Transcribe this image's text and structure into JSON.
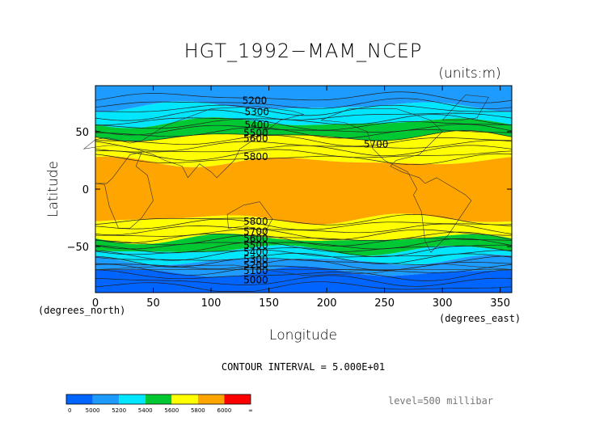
{
  "chart_data": {
    "type": "contour",
    "title": "HGT_1992−MAM_NCEP",
    "units": "(units:m)",
    "xlabel": "Longitude",
    "ylabel": "Latitude",
    "x_units": "(degrees_east)",
    "y_units": "(degrees_north)",
    "xlim": [
      0,
      360
    ],
    "ylim": [
      -90,
      90
    ],
    "x_ticks": [
      0,
      50,
      100,
      150,
      200,
      250,
      300,
      350
    ],
    "y_ticks": [
      -50,
      0,
      50
    ],
    "contour_interval": "CONTOUR INTERVAL = 5.000E+01",
    "level": "level=500 millibar",
    "contour_labels": [
      {
        "x": 127,
        "y": 77,
        "text": "5200"
      },
      {
        "x": 129,
        "y": 67,
        "text": "5300"
      },
      {
        "x": 129,
        "y": 56,
        "text": "5400"
      },
      {
        "x": 128,
        "y": 49,
        "text": "5500"
      },
      {
        "x": 128,
        "y": 44,
        "text": "5600"
      },
      {
        "x": 232,
        "y": 39,
        "text": "5700"
      },
      {
        "x": 128,
        "y": 28,
        "text": "5800"
      },
      {
        "x": 128,
        "y": -28,
        "text": "5800"
      },
      {
        "x": 128,
        "y": -37,
        "text": "5700"
      },
      {
        "x": 128,
        "y": -43,
        "text": "5600"
      },
      {
        "x": 128,
        "y": -49,
        "text": "5500"
      },
      {
        "x": 128,
        "y": -55,
        "text": "5400"
      },
      {
        "x": 128,
        "y": -61,
        "text": "5300"
      },
      {
        "x": 128,
        "y": -66,
        "text": "5200"
      },
      {
        "x": 128,
        "y": -71,
        "text": "5100"
      },
      {
        "x": 128,
        "y": -79,
        "text": "5000"
      }
    ],
    "bands": [
      {
        "lat_from": 72,
        "lat_to": 90,
        "color": "#1e9bff"
      },
      {
        "lat_from": 58,
        "lat_to": 72,
        "color": "#00e6ff"
      },
      {
        "lat_from": 46,
        "lat_to": 58,
        "color": "#00c832"
      },
      {
        "lat_from": 24,
        "lat_to": 46,
        "color": "#ffff00"
      },
      {
        "lat_from": -26,
        "lat_to": 24,
        "color": "#ffa500"
      },
      {
        "lat_from": -43,
        "lat_to": -26,
        "color": "#ffff00"
      },
      {
        "lat_from": -53,
        "lat_to": -43,
        "color": "#00c832"
      },
      {
        "lat_from": -62,
        "lat_to": -53,
        "color": "#00e6ff"
      },
      {
        "lat_from": -72,
        "lat_to": -62,
        "color": "#1e9bff"
      },
      {
        "lat_from": -90,
        "lat_to": -72,
        "color": "#0064ff"
      }
    ],
    "colorbar": {
      "labels": [
        "0",
        "5000",
        "5200",
        "5400",
        "5600",
        "5800",
        "6000",
        "∞"
      ],
      "colors": [
        "#0064ff",
        "#1e9bff",
        "#00e6ff",
        "#00c832",
        "#ffff00",
        "#ffa500",
        "#ff0000"
      ]
    }
  }
}
